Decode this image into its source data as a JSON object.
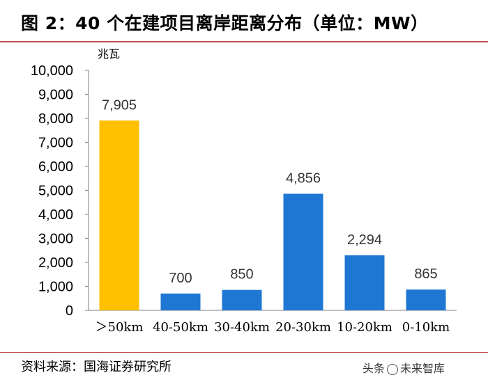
{
  "title": "图 2：40 个在建项目离岸距离分布（单位：MW）",
  "unit_label": "兆瓦",
  "source": "资料来源：国海证券研究所",
  "watermark": {
    "prefix": "头条",
    "brand": "未来智库"
  },
  "chart_data": {
    "type": "bar",
    "categories": [
      ">50km",
      "40-50km",
      "30-40km",
      "20-30km",
      "10-20km",
      "0-10km"
    ],
    "display_categories": [
      "＞50km",
      "40-50km",
      "30-40km",
      "20-30km",
      "10-20km",
      "0-10km"
    ],
    "values": [
      7905,
      700,
      850,
      4856,
      2294,
      865
    ],
    "data_labels": [
      "7,905",
      "700",
      "850",
      "4,856",
      "2,294",
      "865"
    ],
    "ylim": [
      0,
      10000
    ],
    "yticks": [
      0,
      1000,
      2000,
      3000,
      4000,
      5000,
      6000,
      7000,
      8000,
      9000,
      10000
    ],
    "ytick_labels": [
      "0",
      "1,000",
      "2,000",
      "3,000",
      "4,000",
      "5,000",
      "6,000",
      "7,000",
      "8,000",
      "9,000",
      "10,000"
    ],
    "ylabel": "兆瓦",
    "grid": false,
    "colors": [
      "#ffc000",
      "#1f77d4",
      "#1f77d4",
      "#1f77d4",
      "#1f77d4",
      "#1f77d4"
    ]
  }
}
